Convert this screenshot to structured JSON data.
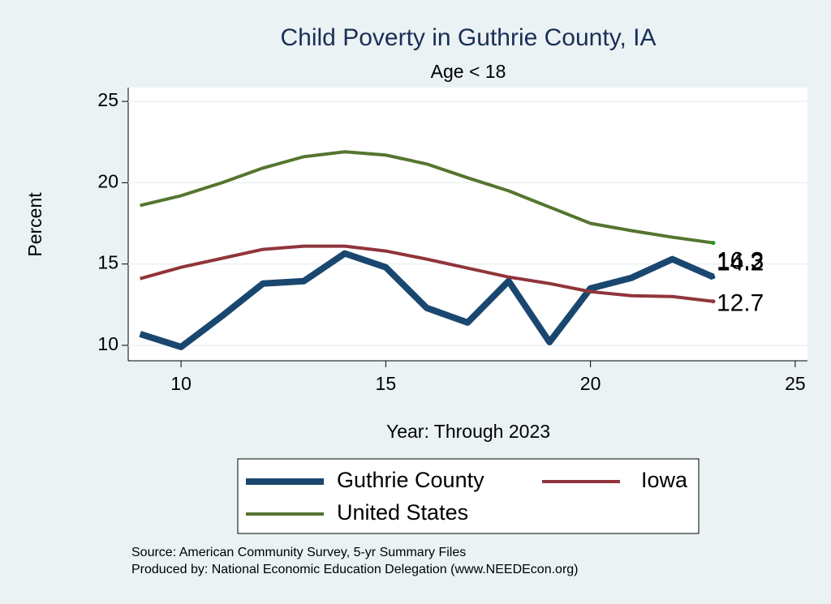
{
  "chart_data": {
    "type": "line",
    "title": "Child Poverty in Guthrie County, IA",
    "subtitle": "Age < 18",
    "x_label": "Year: Through 2023",
    "y_label": "Percent",
    "x": [
      9,
      10,
      11,
      12,
      13,
      14,
      15,
      16,
      17,
      18,
      19,
      20,
      21,
      22,
      23
    ],
    "series": [
      {
        "name": "Guthrie County",
        "color": "#1a476f",
        "values": [
          10.7,
          9.9,
          11.8,
          13.8,
          13.95,
          15.65,
          14.8,
          12.3,
          11.4,
          13.95,
          10.2,
          13.5,
          14.15,
          15.3,
          14.2
        ]
      },
      {
        "name": "Iowa",
        "color": "#90353b",
        "values": [
          14.1,
          14.8,
          15.35,
          15.9,
          16.1,
          16.1,
          15.8,
          15.3,
          14.75,
          14.2,
          13.8,
          13.3,
          13.05,
          13.0,
          12.7
        ]
      },
      {
        "name": "United States",
        "color": "#55752f",
        "values": [
          18.6,
          19.2,
          20.0,
          20.9,
          21.6,
          21.9,
          21.7,
          21.15,
          20.3,
          19.5,
          18.5,
          17.5,
          17.05,
          16.65,
          16.3
        ]
      }
    ],
    "xlim": [
      8.71,
      25.3
    ],
    "xticks": [
      10,
      15,
      20,
      25
    ],
    "ylim": [
      9.05,
      25.85
    ],
    "yticks": [
      10,
      15,
      20,
      25
    ],
    "grid": true,
    "notes": [
      "Source: American Community Survey, 5-yr Summary Files",
      "Produced by: National Economic Education Delegation (www.NEEDEcon.org)"
    ]
  }
}
